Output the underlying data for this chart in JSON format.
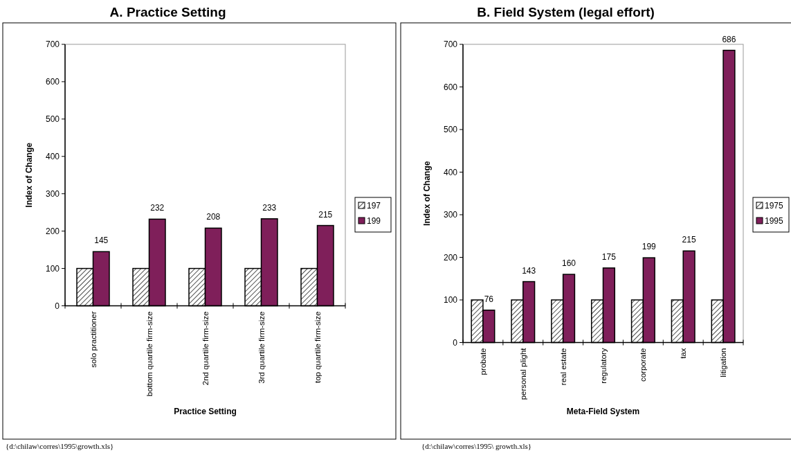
{
  "chart_data": [
    {
      "type": "bar",
      "title": "A. Practice Setting",
      "xlabel": "Practice Setting",
      "ylabel": "Index of Change",
      "categories": [
        "solo practitioner",
        "bottom quartile firm-size",
        "2nd quartile firm-size",
        "3rd quartile firm-size",
        "top quartile firm-size"
      ],
      "series": [
        {
          "name": "197",
          "color": "#000000",
          "values": [
            100,
            100,
            100,
            100,
            100
          ]
        },
        {
          "name": "199",
          "color": "#7f1f5a",
          "values": [
            145,
            232,
            208,
            233,
            215
          ],
          "value_labels": [
            "145",
            "232",
            "208",
            "233",
            "215"
          ]
        }
      ],
      "ylim": [
        0,
        700
      ],
      "yticks": [
        0,
        100,
        200,
        300,
        400,
        500,
        600,
        700
      ],
      "legend": "right",
      "annotations": [
        "{d:\\chilaw\\corres\\1995\\growth.xls}"
      ]
    },
    {
      "type": "bar",
      "title": "B. Field System (legal effort)",
      "xlabel": "Meta-Field System",
      "ylabel": "Index of Change",
      "categories": [
        "probate",
        "personal plight",
        "real estate",
        "regulatory",
        "corporate",
        "tax",
        "litigation"
      ],
      "series": [
        {
          "name": "1975",
          "color": "#000000",
          "values": [
            100,
            100,
            100,
            100,
            100,
            100,
            100
          ]
        },
        {
          "name": "1995",
          "color": "#7f1f5a",
          "values": [
            76,
            143,
            160,
            175,
            199,
            215,
            686
          ],
          "value_labels": [
            "76",
            "143",
            "160",
            "175",
            "199",
            "215",
            "686"
          ]
        }
      ],
      "ylim": [
        0,
        700
      ],
      "yticks": [
        0,
        100,
        200,
        300,
        400,
        500,
        600,
        700
      ],
      "legend": "right",
      "annotations": [
        "{d:\\chilaw\\corres\\1995\\ growth.xls}"
      ]
    }
  ]
}
